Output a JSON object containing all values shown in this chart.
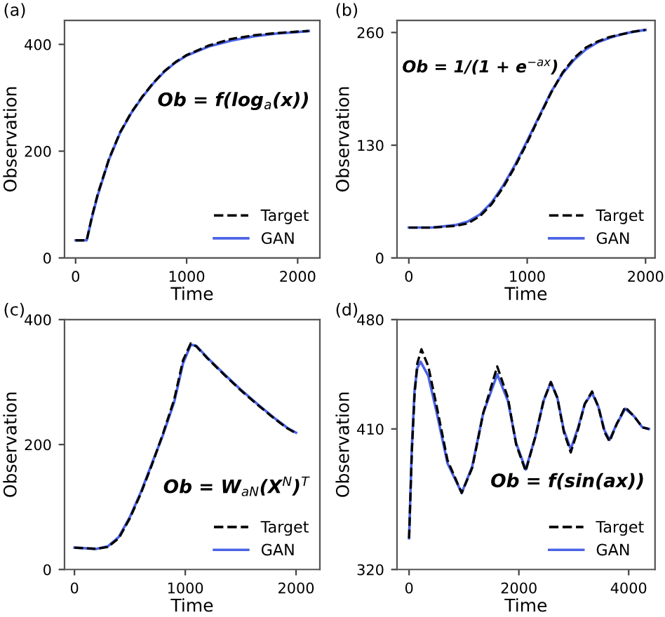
{
  "chart_data": [
    {
      "type": "line",
      "title": "(a)",
      "xlabel": "Time",
      "ylabel": "Observation",
      "annotations": [
        "Ob = f(log$_{a}$(x))"
      ],
      "xlim": [
        -100,
        2200
      ],
      "ylim": [
        0,
        445
      ],
      "xticks": [
        0,
        1000,
        2000
      ],
      "yticks": [
        0,
        200,
        400
      ],
      "grid": false,
      "legend": "bottom right",
      "marker": "none",
      "series": [
        {
          "name": "Target",
          "color": "#000000",
          "line_style": "dashed",
          "x": [
            0,
            100,
            150,
            200,
            300,
            400,
            500,
            600,
            700,
            800,
            900,
            1000,
            1200,
            1400,
            1600,
            1800,
            2000,
            2100
          ],
          "values": [
            33,
            33,
            80,
            120,
            185,
            235,
            272,
            302,
            328,
            350,
            367,
            380,
            398,
            410,
            417,
            421,
            424,
            425
          ]
        },
        {
          "name": "GAN",
          "color": "#4b63e6",
          "line_style": "solid",
          "x": [
            0,
            100,
            150,
            200,
            300,
            400,
            500,
            600,
            700,
            800,
            900,
            1000,
            1200,
            1400,
            1600,
            1800,
            2000,
            2100
          ],
          "values": [
            33,
            33,
            78,
            118,
            184,
            234,
            271,
            301,
            327,
            349,
            366,
            379,
            396,
            407,
            415,
            420,
            423,
            425
          ]
        }
      ]
    },
    {
      "type": "line",
      "title": "(b)",
      "xlabel": "Time",
      "ylabel": "Observation",
      "annotations": [
        "Ob = 1/(1 + e$^{−ax}$)"
      ],
      "xlim": [
        -100,
        2080
      ],
      "ylim": [
        0,
        274
      ],
      "xticks": [
        0,
        1000,
        2000
      ],
      "yticks": [
        0,
        130,
        260
      ],
      "grid": false,
      "legend": "bottom right",
      "marker": "none",
      "series": [
        {
          "name": "Target",
          "color": "#000000",
          "line_style": "dashed",
          "x": [
            0,
            200,
            400,
            500,
            600,
            700,
            800,
            900,
            1000,
            1100,
            1200,
            1300,
            1400,
            1500,
            1600,
            1700,
            1800,
            1900,
            2000
          ],
          "values": [
            35,
            35,
            37,
            40,
            48,
            62,
            82,
            106,
            133,
            162,
            190,
            214,
            231,
            243,
            250,
            255,
            258,
            261,
            263
          ]
        },
        {
          "name": "GAN",
          "color": "#4b63e6",
          "line_style": "solid",
          "x": [
            0,
            200,
            400,
            500,
            600,
            700,
            800,
            900,
            1000,
            1100,
            1200,
            1300,
            1400,
            1500,
            1600,
            1700,
            1800,
            1900,
            2000
          ],
          "values": [
            35,
            35,
            38,
            42,
            50,
            64,
            84,
            108,
            135,
            163,
            191,
            213,
            229,
            241,
            249,
            254,
            258,
            261,
            263
          ]
        }
      ]
    },
    {
      "type": "line",
      "title": "(c)",
      "xlabel": "Time",
      "ylabel": "Observation",
      "annotations": [
        "Ob = W$_{aN}$(X$^{N}$)$^{T}$"
      ],
      "xlim": [
        -90,
        2215
      ],
      "ylim": [
        0,
        400
      ],
      "xticks": [
        0,
        1000,
        2000
      ],
      "yticks": [
        0,
        200,
        400
      ],
      "grid": false,
      "legend": "bottom right",
      "marker": "none",
      "series": [
        {
          "name": "Target",
          "color": "#000000",
          "line_style": "dashed",
          "x": [
            0,
            200,
            300,
            400,
            500,
            600,
            700,
            800,
            900,
            980,
            1050,
            1100,
            1200,
            1350,
            1500,
            1650,
            1800,
            1920,
            2000
          ],
          "values": [
            35,
            33,
            36,
            50,
            82,
            122,
            168,
            218,
            272,
            335,
            362,
            357,
            338,
            312,
            287,
            264,
            242,
            226,
            218
          ]
        },
        {
          "name": "GAN",
          "color": "#4b63e6",
          "line_style": "solid",
          "x": [
            0,
            200,
            300,
            400,
            500,
            600,
            700,
            800,
            900,
            980,
            1050,
            1100,
            1200,
            1350,
            1500,
            1650,
            1800,
            1920,
            2000
          ],
          "values": [
            35,
            33,
            37,
            52,
            84,
            124,
            170,
            216,
            268,
            330,
            360,
            358,
            339,
            313,
            288,
            265,
            243,
            227,
            219
          ]
        }
      ]
    },
    {
      "type": "line",
      "title": "(d)",
      "xlabel": "Time",
      "ylabel": "Observation",
      "annotations": [
        "Ob = f(sin(ax))"
      ],
      "xlim": [
        -220,
        4480
      ],
      "ylim": [
        320,
        480
      ],
      "xticks": [
        0,
        2000,
        4000
      ],
      "yticks": [
        320,
        410,
        480
      ],
      "grid": false,
      "legend": "bottom right",
      "marker": "none",
      "series": [
        {
          "name": "Target",
          "color": "#000000",
          "line_style": "dashed",
          "x": [
            0,
            50,
            100,
            150,
            225,
            350,
            500,
            700,
            958,
            1150,
            1350,
            1606,
            1800,
            1950,
            2124,
            2300,
            2450,
            2582,
            2700,
            2820,
            2945,
            3080,
            3200,
            3333,
            3450,
            3560,
            3652,
            3780,
            3937,
            4100,
            4250,
            4369
          ],
          "values": [
            340,
            395,
            432,
            452,
            461,
            450,
            425,
            390,
            369,
            385,
            420,
            450,
            430,
            400,
            383,
            405,
            428,
            440,
            430,
            408,
            395,
            410,
            426,
            434,
            424,
            408,
            402,
            413,
            424,
            418,
            411,
            410
          ]
        },
        {
          "name": "GAN",
          "color": "#4b63e6",
          "line_style": "solid",
          "x": [
            0,
            50,
            100,
            150,
            210,
            350,
            500,
            700,
            958,
            1150,
            1350,
            1606,
            1800,
            1950,
            2124,
            2300,
            2450,
            2582,
            2700,
            2820,
            2945,
            3080,
            3200,
            3333,
            3450,
            3560,
            3652,
            3780,
            3937,
            4100,
            4250,
            4369
          ],
          "values": [
            340,
            398,
            435,
            449,
            453,
            444,
            421,
            388,
            369,
            386,
            420,
            445,
            428,
            401,
            384,
            405,
            428,
            440,
            430,
            409,
            397,
            411,
            426,
            433,
            424,
            409,
            403,
            413,
            423,
            418,
            411,
            410
          ]
        }
      ]
    }
  ]
}
